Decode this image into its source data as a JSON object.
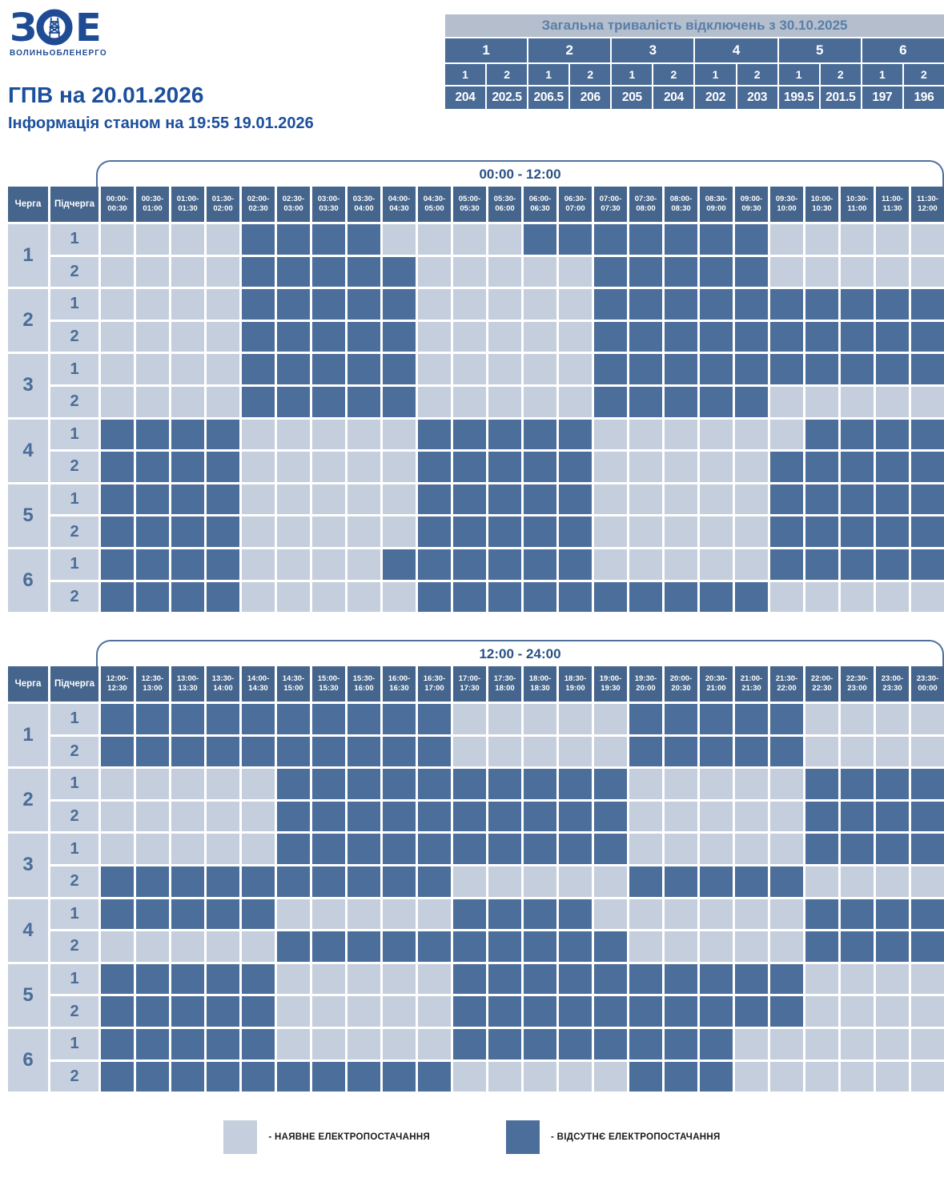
{
  "brand": {
    "letter_left": "З",
    "letter_right": "Е",
    "name": "ВОЛИНЬОБЛЕНЕРГО"
  },
  "header": {
    "title": "ГПВ на 20.01.2026",
    "subtitle": "Інформація станом на 19:55 19.01.2026"
  },
  "summary": {
    "title": "Загальна тривалість відключень з 30.10.2025",
    "queues": [
      {
        "number": "1",
        "subqueues": [
          {
            "label": "1",
            "total": "204"
          },
          {
            "label": "2",
            "total": "202.5"
          }
        ]
      },
      {
        "number": "2",
        "subqueues": [
          {
            "label": "1",
            "total": "206.5"
          },
          {
            "label": "2",
            "total": "206"
          }
        ]
      },
      {
        "number": "3",
        "subqueues": [
          {
            "label": "1",
            "total": "205"
          },
          {
            "label": "2",
            "total": "204"
          }
        ]
      },
      {
        "number": "4",
        "subqueues": [
          {
            "label": "1",
            "total": "202"
          },
          {
            "label": "2",
            "total": "203"
          }
        ]
      },
      {
        "number": "5",
        "subqueues": [
          {
            "label": "1",
            "total": "199.5"
          },
          {
            "label": "2",
            "total": "201.5"
          }
        ]
      },
      {
        "number": "6",
        "subqueues": [
          {
            "label": "1",
            "total": "197"
          },
          {
            "label": "2",
            "total": "196"
          }
        ]
      }
    ]
  },
  "schedule": {
    "queue_header": "Черга",
    "subqueue_header": "Підчерга",
    "cell_legend": {
      "0": "наявне електропостачання",
      "1": "відсутнє електропостачання"
    },
    "tables": [
      {
        "window": "00:00 - 12:00",
        "slots": [
          "00:00-00:30",
          "00:30-01:00",
          "01:00-01:30",
          "01:30-02:00",
          "02:00-02:30",
          "02:30-03:00",
          "03:00-03:30",
          "03:30-04:00",
          "04:00-04:30",
          "04:30-05:00",
          "05:00-05:30",
          "05:30-06:00",
          "06:00-06:30",
          "06:30-07:00",
          "07:00-07:30",
          "07:30-08:00",
          "08:00-08:30",
          "08:30-09:00",
          "09:00-09:30",
          "09:30-10:00",
          "10:00-10:30",
          "10:30-11:00",
          "11:00-11:30",
          "11:30-12:00"
        ],
        "rows": [
          {
            "queue": "1",
            "subqueue": "1",
            "cells": "000011110000111111100000"
          },
          {
            "queue": "1",
            "subqueue": "2",
            "cells": "000011111000001111100000"
          },
          {
            "queue": "2",
            "subqueue": "1",
            "cells": "000011111000001111111111"
          },
          {
            "queue": "2",
            "subqueue": "2",
            "cells": "000011111000001111111111"
          },
          {
            "queue": "3",
            "subqueue": "1",
            "cells": "000011111000001111111111"
          },
          {
            "queue": "3",
            "subqueue": "2",
            "cells": "000011111000001111100000"
          },
          {
            "queue": "4",
            "subqueue": "1",
            "cells": "111100000111110000001111"
          },
          {
            "queue": "4",
            "subqueue": "2",
            "cells": "111100000111110000011111"
          },
          {
            "queue": "5",
            "subqueue": "1",
            "cells": "111100000111110000011111"
          },
          {
            "queue": "5",
            "subqueue": "2",
            "cells": "111100000111110000011111"
          },
          {
            "queue": "6",
            "subqueue": "1",
            "cells": "111100001111110000011111"
          },
          {
            "queue": "6",
            "subqueue": "2",
            "cells": "111100000111111111100000"
          }
        ]
      },
      {
        "window": "12:00 - 24:00",
        "slots": [
          "12:00-12:30",
          "12:30-13:00",
          "13:00-13:30",
          "13:30-14:00",
          "14:00-14:30",
          "14:30-15:00",
          "15:00-15:30",
          "15:30-16:00",
          "16:00-16:30",
          "16:30-17:00",
          "17:00-17:30",
          "17:30-18:00",
          "18:00-18:30",
          "18:30-19:00",
          "19:00-19:30",
          "19:30-20:00",
          "20:00-20:30",
          "20:30-21:00",
          "21:00-21:30",
          "21:30-22:00",
          "22:00-22:30",
          "22:30-23:00",
          "23:00-23:30",
          "23:30-00:00"
        ],
        "rows": [
          {
            "queue": "1",
            "subqueue": "1",
            "cells": "111111111100000111110000"
          },
          {
            "queue": "1",
            "subqueue": "2",
            "cells": "111111111100000111110000"
          },
          {
            "queue": "2",
            "subqueue": "1",
            "cells": "000001111111111000001111"
          },
          {
            "queue": "2",
            "subqueue": "2",
            "cells": "000001111111111000001111"
          },
          {
            "queue": "3",
            "subqueue": "1",
            "cells": "000001111111111000001111"
          },
          {
            "queue": "3",
            "subqueue": "2",
            "cells": "111111111100000111110000"
          },
          {
            "queue": "4",
            "subqueue": "1",
            "cells": "111110000011110000001111"
          },
          {
            "queue": "4",
            "subqueue": "2",
            "cells": "000001111111111000001111"
          },
          {
            "queue": "5",
            "subqueue": "1",
            "cells": "111110000011111111110000"
          },
          {
            "queue": "5",
            "subqueue": "2",
            "cells": "111110000011111111110000"
          },
          {
            "queue": "6",
            "subqueue": "1",
            "cells": "111110000011111111000000"
          },
          {
            "queue": "6",
            "subqueue": "2",
            "cells": "111111111100000111000000"
          }
        ]
      }
    ]
  },
  "legend": {
    "items": [
      {
        "key": "available",
        "label": "- НАЯВНЕ ЕЛЕКТРОПОСТАЧАННЯ"
      },
      {
        "key": "outage",
        "label": "- ВІДСУТНЄ ЕЛЕКТРОПОСТАЧАННЯ"
      }
    ]
  },
  "colors": {
    "brand_blue": "#1e4b94",
    "title_blue": "#1c4f9c",
    "available": "#c4cedc",
    "outage": "#4c6e9b",
    "header_cell": "#45658c",
    "label_cell_bg": "#c7d0de",
    "label_text": "#4a6d99",
    "summary_title_bg": "#b4becc",
    "summary_title_text": "#5a7ea8",
    "summary_cell_bg": "#4a6b96",
    "bracket_border": "#4f719c",
    "bracket_text": "#2b5183"
  }
}
